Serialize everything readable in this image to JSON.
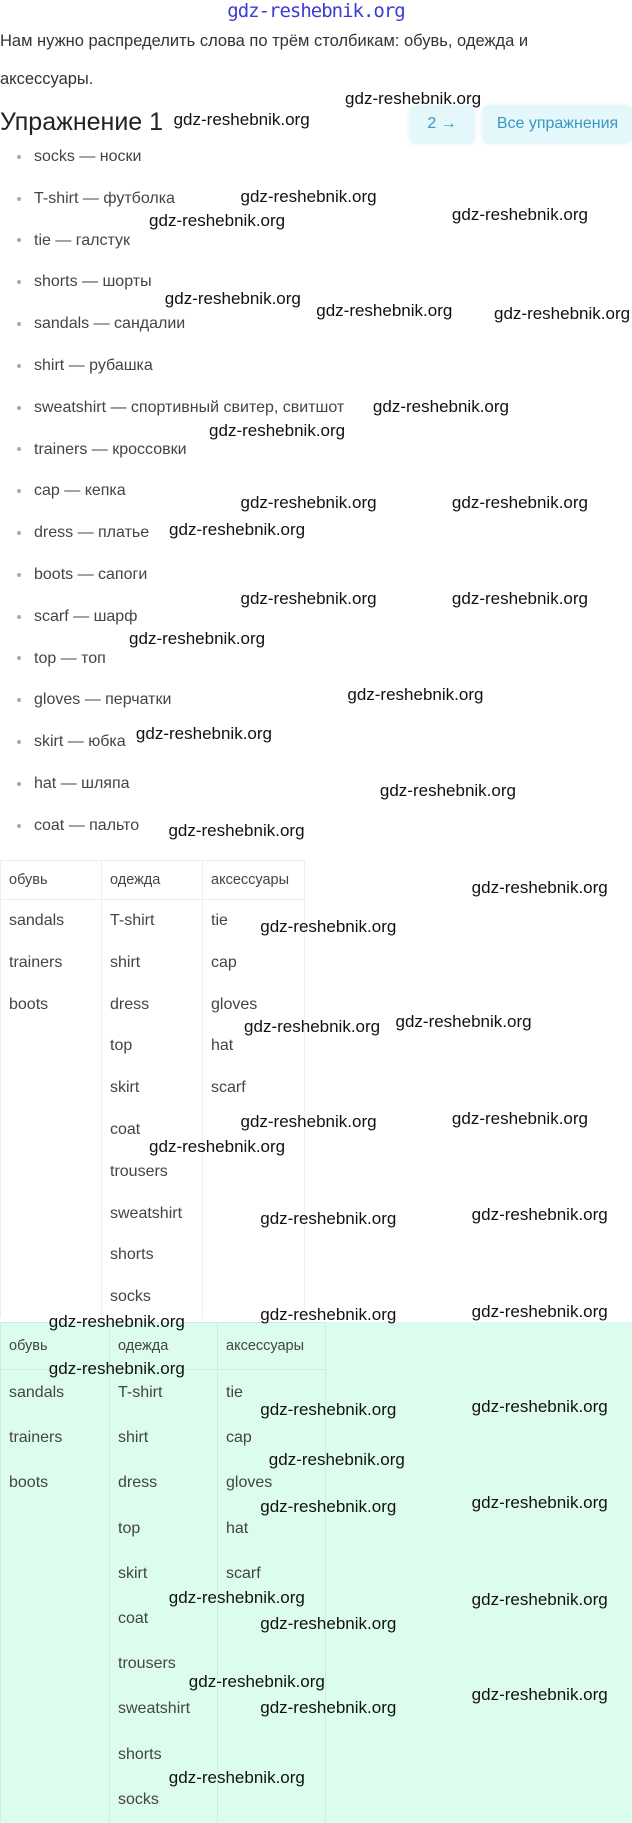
{
  "watermark": "gdz-reshebnik.org",
  "intro": [
    "Нам нужно распределить слова по трём столбикам: обувь, одежда и",
    "аксессуары."
  ],
  "heading": "Упражнение 1",
  "nav": {
    "next_label": "2 →",
    "all_label": "Все упражнения"
  },
  "vocab": [
    "socks — носки",
    "T-shirt — футболка",
    "tie — галстук",
    "shorts — шорты",
    "sandals — сандалии",
    "shirt — рубашка",
    "sweatshirt — спортивный свитер, свитшот",
    "trainers — кроссовки",
    "cap — кепка",
    "dress — платье",
    "boots — сапоги",
    "scarf — шарф",
    "top — топ",
    "gloves — перчатки",
    "skirt — юбка",
    "hat — шляпа",
    "coat — пальто"
  ],
  "table": {
    "headers": [
      "обувь",
      "одежда",
      "аксессуары"
    ],
    "columns": [
      [
        "sandals",
        "trainers",
        "boots"
      ],
      [
        "T-shirt",
        "shirt",
        "dress",
        "top",
        "skirt",
        "coat",
        "trousers",
        "sweatshirt",
        "shorts",
        "socks"
      ],
      [
        "tie",
        "cap",
        "gloves",
        "hat",
        "scarf"
      ]
    ]
  },
  "colors": {
    "answer_bg": "#dcfcee",
    "button_bg": "#e4f7fb",
    "button_text": "#3a98c2",
    "top_watermark": "#3b3bd6"
  }
}
